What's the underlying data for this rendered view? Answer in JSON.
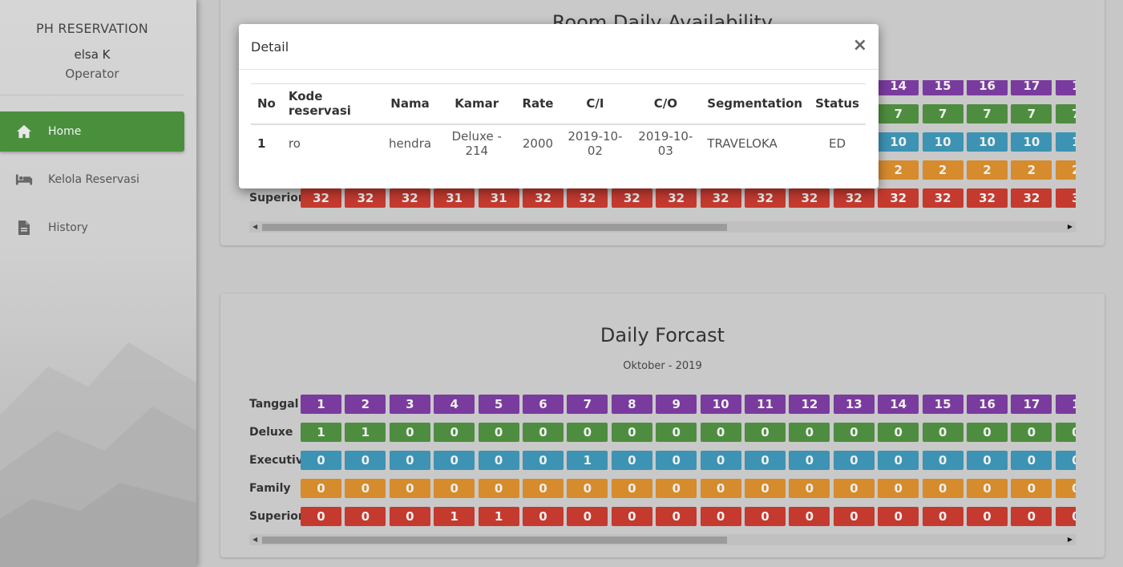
{
  "sidebar": {
    "brand": "PH RESERVATION",
    "user_name": "elsa K",
    "user_role": "Operator",
    "items": [
      {
        "label": "Home",
        "icon": "home-icon",
        "active": true
      },
      {
        "label": "Kelola Reservasi",
        "icon": "bed-icon",
        "active": false
      },
      {
        "label": "History",
        "icon": "document-icon",
        "active": false
      }
    ]
  },
  "colors": {
    "tanggal": "#7a3b9e",
    "deluxe": "#4e8d3f",
    "executive": "#3d93b3",
    "family": "#d68b2c",
    "superior": "#c43a2f",
    "active_nav": "#4a8f3c"
  },
  "availability": {
    "title": "Room Daily Availability",
    "visible_rows": {
      "tanggal_tail": [
        "14",
        "15",
        "16",
        "17",
        "1"
      ],
      "deluxe_tail": [
        "7",
        "7",
        "7",
        "7",
        "7"
      ],
      "executive_tail": [
        "10",
        "10",
        "10",
        "10",
        "1"
      ],
      "family_tail": [
        "2",
        "2",
        "2",
        "2",
        "2"
      ],
      "superior": [
        "32",
        "32",
        "32",
        "31",
        "31",
        "32",
        "32",
        "32",
        "32",
        "32",
        "32",
        "32",
        "32",
        "32",
        "32",
        "32",
        "32",
        "3"
      ]
    },
    "superior_label": "Superior"
  },
  "forecast": {
    "title": "Daily Forcast",
    "subtitle": "Oktober - 2019",
    "rows": [
      {
        "label": "Tanggal",
        "key": "tanggal",
        "values": [
          "1",
          "2",
          "3",
          "4",
          "5",
          "6",
          "7",
          "8",
          "9",
          "10",
          "11",
          "12",
          "13",
          "14",
          "15",
          "16",
          "17",
          "1"
        ]
      },
      {
        "label": "Deluxe",
        "key": "deluxe",
        "values": [
          "1",
          "1",
          "0",
          "0",
          "0",
          "0",
          "0",
          "0",
          "0",
          "0",
          "0",
          "0",
          "0",
          "0",
          "0",
          "0",
          "0",
          "0"
        ]
      },
      {
        "label": "Executive",
        "key": "executive",
        "values": [
          "0",
          "0",
          "0",
          "0",
          "0",
          "0",
          "1",
          "0",
          "0",
          "0",
          "0",
          "0",
          "0",
          "0",
          "0",
          "0",
          "0",
          "0"
        ]
      },
      {
        "label": "Family",
        "key": "family",
        "values": [
          "0",
          "0",
          "0",
          "0",
          "0",
          "0",
          "0",
          "0",
          "0",
          "0",
          "0",
          "0",
          "0",
          "0",
          "0",
          "0",
          "0",
          "0"
        ]
      },
      {
        "label": "Superior",
        "key": "superior",
        "values": [
          "0",
          "0",
          "0",
          "1",
          "1",
          "0",
          "0",
          "0",
          "0",
          "0",
          "0",
          "0",
          "0",
          "0",
          "0",
          "0",
          "0",
          "0"
        ]
      }
    ]
  },
  "modal": {
    "title": "Detail",
    "close": "×",
    "columns": [
      "No",
      "Kode reservasi",
      "Nama",
      "Kamar",
      "Rate",
      "C/I",
      "C/O",
      "Segmentation",
      "Status"
    ],
    "rows": [
      {
        "no": "1",
        "kode": "ro",
        "nama": "hendra",
        "kamar": "Deluxe - 214",
        "rate": "2000",
        "ci": "2019-10-02",
        "co": "2019-10-03",
        "segmentation": "TRAVELOKA",
        "status": "ED"
      }
    ]
  }
}
